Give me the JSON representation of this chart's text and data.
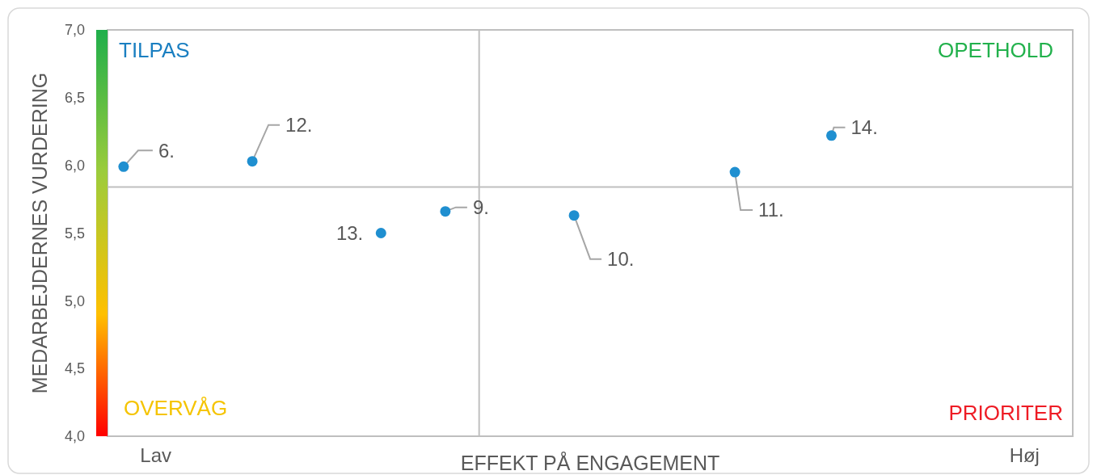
{
  "chart_data": {
    "type": "scatter",
    "xlabel": "EFFEKT PÅ ENGAGEMENT",
    "ylabel": "MEDARBEJDERNES VURDERING",
    "categories": [
      null,
      "Lav",
      null,
      null,
      null,
      null,
      null,
      null,
      null,
      null,
      null,
      null,
      null,
      null,
      null,
      null,
      null,
      null,
      null,
      null,
      null,
      null,
      null,
      null,
      null,
      null,
      null,
      null,
      "Høj",
      null
    ],
    "series": [
      {
        "name": "6.",
        "color": "#1f8fd0",
        "values": [
          5.99,
          null,
          null,
          null,
          null,
          null,
          null,
          null,
          null,
          null,
          null,
          null,
          null,
          null,
          null,
          null,
          null,
          null,
          null,
          null,
          null,
          null,
          null,
          null,
          null,
          null,
          null,
          null,
          null,
          null
        ]
      },
      {
        "name": "12.",
        "color": "#1f8fd0",
        "values": [
          null,
          null,
          null,
          null,
          6.03,
          null,
          null,
          null,
          null,
          null,
          null,
          null,
          null,
          null,
          null,
          null,
          null,
          null,
          null,
          null,
          null,
          null,
          null,
          null,
          null,
          null,
          null,
          null,
          null,
          null
        ]
      },
      {
        "name": "13.",
        "color": "#1f8fd0",
        "values": [
          null,
          null,
          null,
          null,
          null,
          null,
          null,
          null,
          5.5,
          null,
          null,
          null,
          null,
          null,
          null,
          null,
          null,
          null,
          null,
          null,
          null,
          null,
          null,
          null,
          null,
          null,
          null,
          null,
          null,
          null
        ]
      },
      {
        "name": "9.",
        "color": "#1f8fd0",
        "values": [
          null,
          null,
          null,
          null,
          null,
          null,
          null,
          null,
          null,
          null,
          5.66,
          null,
          null,
          null,
          null,
          null,
          null,
          null,
          null,
          null,
          null,
          null,
          null,
          null,
          null,
          null,
          null,
          null,
          null,
          null
        ]
      },
      {
        "name": "10.",
        "color": "#1f8fd0",
        "values": [
          null,
          null,
          null,
          null,
          null,
          null,
          null,
          null,
          null,
          null,
          null,
          null,
          null,
          null,
          5.63,
          null,
          null,
          null,
          null,
          null,
          null,
          null,
          null,
          null,
          null,
          null,
          null,
          null,
          null,
          null
        ]
      },
      {
        "name": "11.",
        "color": "#1f8fd0",
        "values": [
          null,
          null,
          null,
          null,
          null,
          null,
          null,
          null,
          null,
          null,
          null,
          null,
          null,
          null,
          null,
          null,
          null,
          null,
          null,
          5.95,
          null,
          null,
          null,
          null,
          null,
          null,
          null,
          null,
          null,
          null
        ]
      },
      {
        "name": "14.",
        "color": "#1f8fd0",
        "values": [
          null,
          null,
          null,
          null,
          null,
          null,
          null,
          null,
          null,
          null,
          null,
          null,
          null,
          null,
          null,
          null,
          null,
          null,
          null,
          null,
          null,
          null,
          6.22,
          null,
          null,
          null,
          null,
          null,
          null,
          null
        ]
      }
    ],
    "ylim": [
      4,
      7
    ],
    "yticks": [
      {
        "value": 4,
        "label": "4,0"
      },
      {
        "value": 4.5,
        "label": "4,5"
      },
      {
        "value": 5,
        "label": "5,0"
      },
      {
        "value": 5.5,
        "label": "5,5"
      },
      {
        "value": 6,
        "label": "6,0"
      },
      {
        "value": 6.5,
        "label": "6,5"
      },
      {
        "value": 7,
        "label": "7,0"
      }
    ],
    "ref_lines": [
      {
        "axis": "y",
        "value": 5.84,
        "color": "#bfbfbf"
      }
    ],
    "annotations": [
      "TILPAS",
      "OPETHOLD",
      "OVERVÅG",
      "PRIORITER"
    ],
    "marker": "circle"
  }
}
